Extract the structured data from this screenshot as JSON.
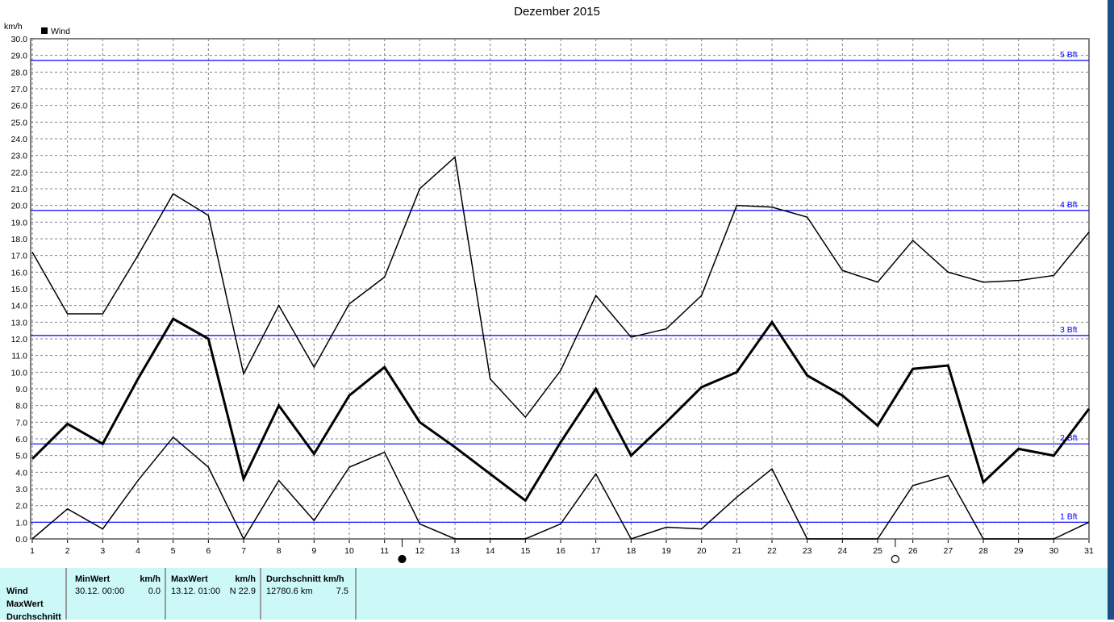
{
  "title": "Dezember 2015",
  "chart_data": {
    "type": "line",
    "title": "Dezember 2015",
    "ylabel": "km/h",
    "ylim": [
      0,
      30
    ],
    "grid": true,
    "legend": {
      "entries": [
        "Wind"
      ],
      "placement": "top-left"
    },
    "x": [
      1,
      2,
      3,
      4,
      5,
      6,
      7,
      8,
      9,
      10,
      11,
      12,
      13,
      14,
      15,
      16,
      17,
      18,
      19,
      20,
      21,
      22,
      23,
      24,
      25,
      26,
      27,
      28,
      29,
      30,
      31
    ],
    "series": [
      {
        "values": [
          17.2,
          13.5,
          13.5,
          17.0,
          20.7,
          19.4,
          9.9,
          14.0,
          10.3,
          14.1,
          15.7,
          21.0,
          22.9,
          9.6,
          7.3,
          10.1,
          14.6,
          12.1,
          12.6,
          14.6,
          20.0,
          19.9,
          19.3,
          16.1,
          15.4,
          17.9,
          16.0,
          15.4,
          15.5,
          15.8,
          18.4
        ],
        "width": 1.5
      },
      {
        "values": [
          4.8,
          6.9,
          5.7,
          9.6,
          13.2,
          12.0,
          3.6,
          8.0,
          5.1,
          8.6,
          10.3,
          7.0,
          5.5,
          3.9,
          2.3,
          5.8,
          9.0,
          5.0,
          7.0,
          9.1,
          10.0,
          13.0,
          9.8,
          8.6,
          6.8,
          10.2,
          10.4,
          3.4,
          5.4,
          5.0,
          7.8
        ],
        "width": 3
      },
      {
        "values": [
          0.0,
          1.8,
          0.6,
          3.5,
          6.1,
          4.3,
          0.0,
          3.5,
          1.1,
          4.3,
          5.2,
          0.9,
          0.0,
          0.0,
          0.0,
          0.9,
          3.9,
          0.0,
          0.7,
          0.6,
          2.5,
          4.2,
          0.0,
          0.0,
          0.0,
          3.2,
          3.8,
          0.0,
          0.0,
          0.0,
          1.0
        ],
        "width": 1.5
      }
    ],
    "reference_lines": [
      {
        "label": "1 Bft",
        "value": 1.0
      },
      {
        "label": "2 Bft",
        "value": 5.7
      },
      {
        "label": "3 Bft",
        "value": 12.2
      },
      {
        "label": "4 Bft",
        "value": 19.7
      },
      {
        "label": "5 Bft",
        "value": 28.7
      }
    ],
    "moon_phases": [
      {
        "day": 11.5,
        "phase": "new"
      },
      {
        "day": 25.5,
        "phase": "full"
      }
    ],
    "colors": {
      "series": "#000000",
      "reference": "#0000ff",
      "grid": "#808080"
    }
  },
  "table": {
    "rows": [
      "Wind",
      "MaxWert",
      "Durchschnitt"
    ],
    "min": {
      "header": "MinWert",
      "unit": "km/h",
      "time": "30.12.  00:00",
      "value": "0.0"
    },
    "max": {
      "header": "MaxWert",
      "unit": "km/h",
      "time": "13.12.  01:00",
      "value": "N 22.9"
    },
    "avg": {
      "header": "Durchschnitt km/h",
      "distance": "12780.6 km",
      "value": "7.5"
    }
  }
}
